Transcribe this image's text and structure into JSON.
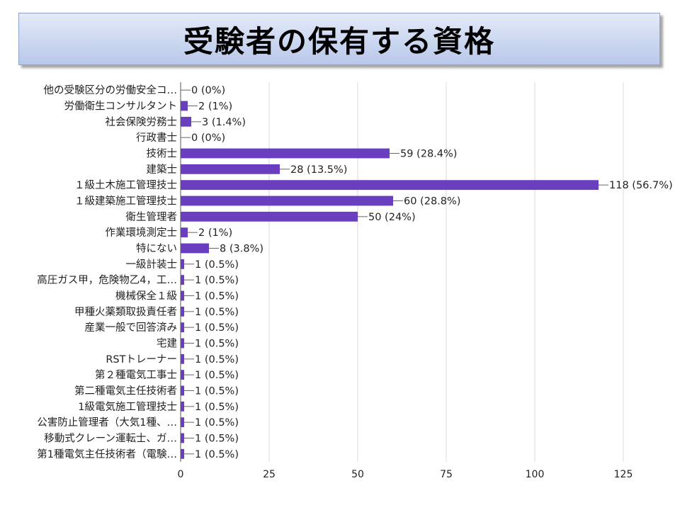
{
  "title": "受験者の保有する資格",
  "chart_data": {
    "type": "bar",
    "orientation": "horizontal",
    "title": "受験者の保有する資格",
    "categories": [
      "他の受験区分の労働安全コ…",
      "労働衛生コンサルタント",
      "社会保険労務士",
      "行政書士",
      "技術士",
      "建築士",
      "１級土木施工管理技士",
      "１級建築施工管理技士",
      "衛生管理者",
      "作業環境測定士",
      "特にない",
      "一級計装士",
      "高圧ガス甲，危険物乙4，工…",
      "機械保全１級",
      "甲種火薬類取扱責任者",
      "産業一般で回答済み",
      "宅建",
      "RSTトレーナー",
      "第２種電気工事士",
      "第二種電気主任技術者",
      "1級電気施工管理技士",
      "公害防止管理者（大気1種、…",
      "移動式クレーン運転士、ガ…",
      "第1種電気主任技術者（電験…"
    ],
    "values": [
      0,
      2,
      3,
      0,
      59,
      28,
      118,
      60,
      50,
      2,
      8,
      1,
      1,
      1,
      1,
      1,
      1,
      1,
      1,
      1,
      1,
      1,
      1,
      1
    ],
    "data_labels": [
      "0 (0%)",
      "2 (1%)",
      "3 (1.4%)",
      "0 (0%)",
      "59 (28.4%)",
      "28 (13.5%)",
      "118 (56.7%)",
      "60 (28.8%)",
      "50 (24%)",
      "2 (1%)",
      "8 (3.8%)",
      "1 (0.5%)",
      "1 (0.5%)",
      "1 (0.5%)",
      "1 (0.5%)",
      "1 (0.5%)",
      "1 (0.5%)",
      "1 (0.5%)",
      "1 (0.5%)",
      "1 (0.5%)",
      "1 (0.5%)",
      "1 (0.5%)",
      "1 (0.5%)",
      "1 (0.5%)"
    ],
    "xlim": [
      0,
      125
    ],
    "xticks": [
      "0",
      "25",
      "50",
      "75",
      "100",
      "125"
    ],
    "grid": "vertical",
    "bar_color": "#6a3fbf"
  }
}
